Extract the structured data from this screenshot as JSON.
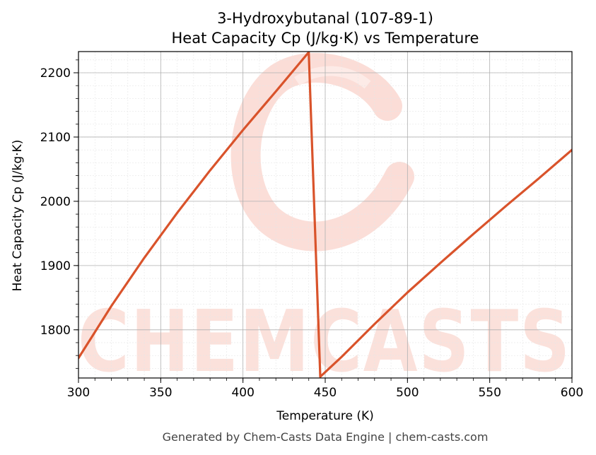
{
  "chart_data": {
    "type": "line",
    "title_line1": "3-Hydroxybutanal (107-89-1)",
    "title_line2": "Heat Capacity Cp (J/kg·K) vs Temperature",
    "xlabel": "Temperature (K)",
    "ylabel": "Heat Capacity Cp (J/kg·K)",
    "xlim": [
      300,
      600
    ],
    "ylim": [
      1725,
      2233
    ],
    "xticks": [
      300,
      350,
      400,
      450,
      500,
      550,
      600
    ],
    "yticks": [
      1800,
      1900,
      2000,
      2100,
      2200
    ],
    "grid": true,
    "line_color": "#d9532b",
    "series": [
      {
        "x": [
          300,
          320,
          340,
          360,
          380,
          400,
          420,
          440,
          447,
          460,
          480,
          500,
          520,
          540,
          560,
          580,
          600
        ],
        "y": [
          1756,
          1837,
          1912,
          1982,
          2048,
          2111,
          2171,
          2232,
          1727,
          1758,
          1809,
          1858,
          1904,
          1949,
          1993,
          2036,
          2080
        ]
      }
    ],
    "watermark": "CHEMCASTS",
    "footer": "Generated by Chem-Casts Data Engine | chem-casts.com"
  }
}
